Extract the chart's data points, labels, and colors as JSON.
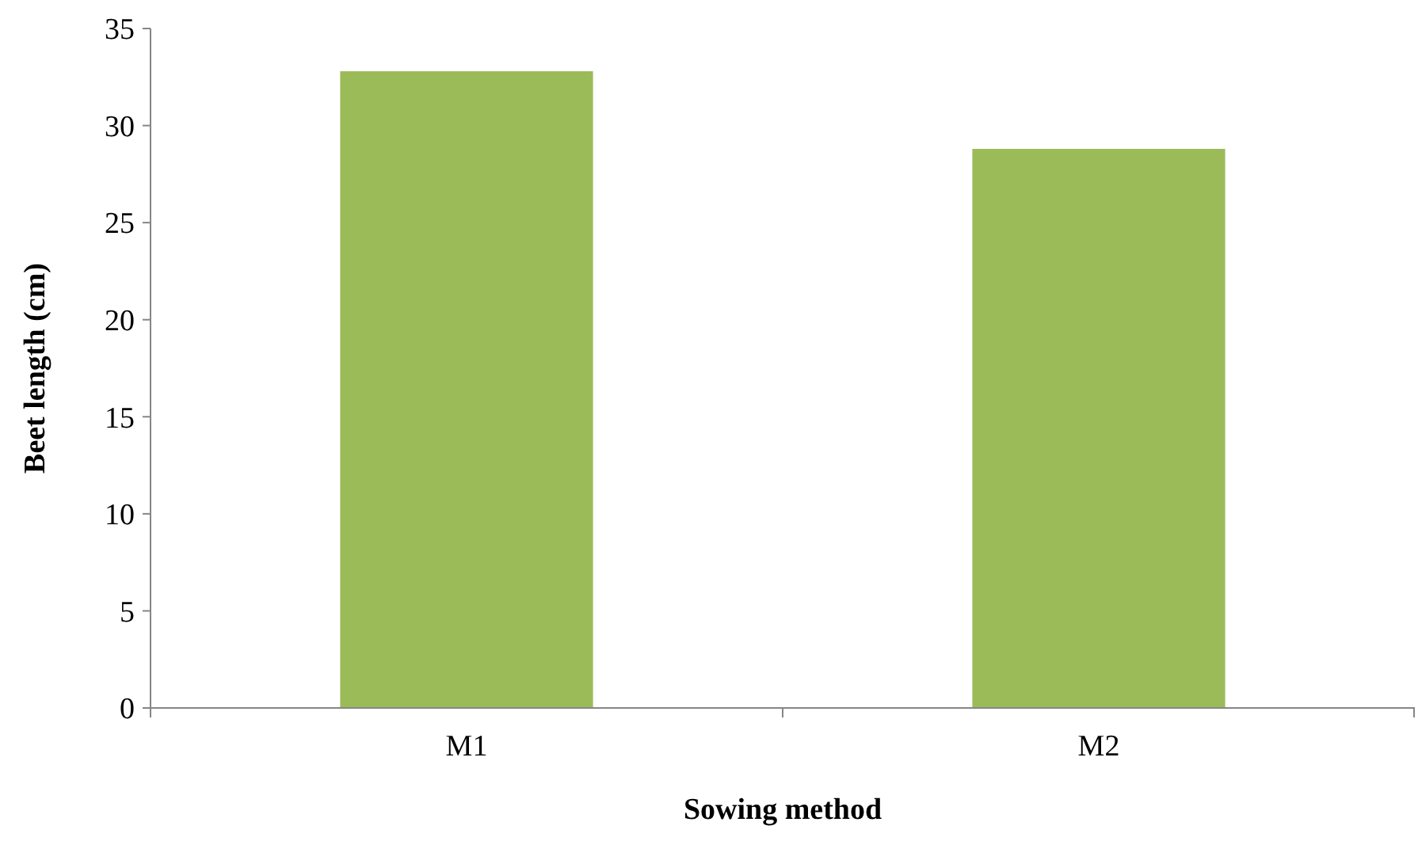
{
  "chart_data": {
    "type": "bar",
    "xlabel": "Sowing method",
    "ylabel": "Beet length (cm)",
    "categories": [
      "M1",
      "M2"
    ],
    "values": [
      32.8,
      28.8
    ],
    "color": "#9bbb59",
    "ylim": [
      0,
      35
    ],
    "yticks": [
      0,
      5,
      10,
      15,
      20,
      25,
      30,
      35
    ],
    "grid": false
  }
}
